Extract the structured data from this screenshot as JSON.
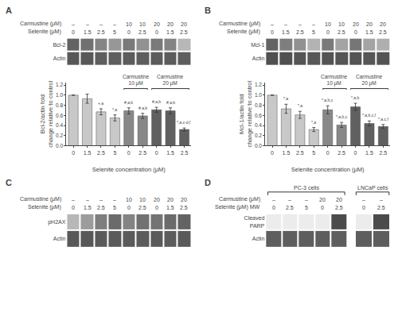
{
  "chart_data": [
    {
      "type": "heatmap",
      "title": "A",
      "header_labels": [
        "Carmustine (μM)",
        "Selenite (μM)"
      ],
      "row_labels": [
        "Bcl-2",
        "Actin"
      ],
      "panels": [
        {
          "header": [
            [
              "–",
              "–",
              "–",
              "–",
              "10",
              "10",
              "20",
              "20",
              "20"
            ],
            [
              "0",
              "1.5",
              "2.5",
              "5",
              "0",
              "2.5",
              "0",
              "1.5",
              "2.5"
            ]
          ],
          "cells": [
            [
              0.72,
              0.65,
              0.55,
              0.45,
              0.6,
              0.48,
              0.6,
              0.55,
              0.28
            ],
            [
              0.78,
              0.78,
              0.75,
              0.75,
              0.76,
              0.75,
              0.76,
              0.76,
              0.75
            ]
          ]
        }
      ],
      "zlim": [
        0,
        1
      ]
    },
    {
      "type": "bar",
      "categories": [
        "0",
        "1.5",
        "2.5",
        "5",
        "0",
        "2.5",
        "0",
        "1.5",
        "2.5"
      ],
      "values": [
        1.0,
        0.93,
        0.67,
        0.55,
        0.69,
        0.59,
        0.71,
        0.69,
        0.32
      ],
      "errors": [
        0.0,
        0.09,
        0.06,
        0.06,
        0.06,
        0.05,
        0.05,
        0.06,
        0.03
      ],
      "colors": [
        "#c8c8c8",
        "#c8c8c8",
        "#c8c8c8",
        "#c8c8c8",
        "#888888",
        "#888888",
        "#606060",
        "#606060",
        "#606060"
      ],
      "xlabel": "Selenite concentration (μM)",
      "ylabel": "Bcl-2/actin fold\nchange relative to control",
      "ylim": [
        0,
        1.25
      ],
      "yticks": [
        {
          "value": 0,
          "label": "0.0"
        },
        0.2,
        0.4,
        0.6,
        0.8,
        {
          "value": 1,
          "label": "1.0"
        },
        1.2
      ],
      "grid": false,
      "annotations": [
        null,
        null,
        "+,a",
        "*,a",
        "#,a,b",
        "#,a,b",
        "#,a,b",
        "#,a,b",
        "*,a,c-d,f"
      ],
      "brackets": [
        {
          "from": 4,
          "to": 5,
          "label": "Carmustine\n10 μM"
        },
        {
          "from": 6,
          "to": 8,
          "label": "Carmustine\n20 μM"
        }
      ]
    },
    {
      "type": "heatmap",
      "title": "B",
      "header_labels": [
        "Carmustine (μM)",
        "Selenite (μM)"
      ],
      "row_labels": [
        "Mcl-1",
        "Actin"
      ],
      "panels": [
        {
          "header": [
            [
              "–",
              "–",
              "–",
              "–",
              "10",
              "10",
              "20",
              "20",
              "20"
            ],
            [
              "0",
              "1.5",
              "2.5",
              "5",
              "0",
              "2.5",
              "0",
              "1.5",
              "2.5"
            ]
          ],
          "cells": [
            [
              0.72,
              0.58,
              0.48,
              0.3,
              0.6,
              0.38,
              0.62,
              0.38,
              0.32
            ],
            [
              0.82,
              0.82,
              0.8,
              0.78,
              0.8,
              0.79,
              0.8,
              0.79,
              0.8
            ]
          ]
        }
      ],
      "zlim": [
        0,
        1
      ]
    },
    {
      "type": "bar",
      "categories": [
        "0",
        "1.5",
        "2.5",
        "5",
        "0",
        "2.5",
        "0",
        "1.5",
        "2.5"
      ],
      "values": [
        1.0,
        0.73,
        0.61,
        0.32,
        0.71,
        0.41,
        0.77,
        0.44,
        0.38
      ],
      "errors": [
        0.0,
        0.09,
        0.07,
        0.04,
        0.08,
        0.05,
        0.07,
        0.05,
        0.04
      ],
      "colors": [
        "#c8c8c8",
        "#c8c8c8",
        "#c8c8c8",
        "#c8c8c8",
        "#888888",
        "#888888",
        "#606060",
        "#606060",
        "#606060"
      ],
      "xlabel": "Selenite concentration (μM)",
      "ylabel": "Mcl-1/actin fold\nchange relative to control",
      "ylim": [
        0,
        1.25
      ],
      "yticks": [
        {
          "value": 0,
          "label": "0.0"
        },
        0.2,
        0.4,
        0.6,
        0.8,
        {
          "value": 1,
          "label": "1.0"
        },
        1.2
      ],
      "grid": false,
      "annotations": [
        null,
        "*,a",
        "*,a",
        "*,a",
        "*,a,b,c",
        "*,a,b,c",
        "*,a,b",
        "*,a,b,c,f",
        "*,a,c,f"
      ],
      "brackets": [
        {
          "from": 4,
          "to": 5,
          "label": "Carmustine\n10 μM"
        },
        {
          "from": 6,
          "to": 8,
          "label": "Carmustine\n20 μM"
        }
      ]
    },
    {
      "type": "heatmap",
      "title": "C",
      "header_labels": [
        "Carmustine (μM)",
        "Selenite (μM)"
      ],
      "row_labels": [
        "pH2AX",
        "Actin"
      ],
      "panels": [
        {
          "header": [
            [
              "–",
              "–",
              "–",
              "–",
              "10",
              "10",
              "20",
              "20",
              "20"
            ],
            [
              "0",
              "1.5",
              "2.5",
              "5",
              "0",
              "2.5",
              "0",
              "1.5",
              "2.5"
            ]
          ],
          "cells": [
            [
              0.28,
              0.42,
              0.58,
              0.68,
              0.55,
              0.65,
              0.63,
              0.68,
              0.72
            ],
            [
              0.78,
              0.78,
              0.77,
              0.77,
              0.77,
              0.76,
              0.77,
              0.76,
              0.77
            ]
          ]
        }
      ],
      "zlim": [
        0,
        1
      ]
    },
    {
      "type": "heatmap",
      "title": "D",
      "header_labels": [
        "Carmustine (μM)",
        "Selenite (μM) MW"
      ],
      "row_labels": [
        "Cleaved\nPARP",
        "Actin"
      ],
      "panels": [
        {
          "name": "PC-3 cells",
          "header": [
            [
              "–",
              "–",
              "–",
              "20",
              "20"
            ],
            [
              "0",
              "2.5",
              "5",
              "0",
              "2.5"
            ]
          ],
          "cells": [
            [
              0.0,
              0.0,
              0.0,
              0.0,
              0.85
            ],
            [
              0.75,
              0.75,
              0.75,
              0.75,
              0.75
            ]
          ]
        },
        {
          "name": "LNCaP cells",
          "header": [
            [
              "–",
              "–"
            ],
            [
              "0",
              "2.5"
            ]
          ],
          "cells": [
            [
              0.0,
              0.85
            ],
            [
              0.75,
              0.75
            ]
          ]
        }
      ],
      "zlim": [
        0,
        1
      ]
    }
  ]
}
